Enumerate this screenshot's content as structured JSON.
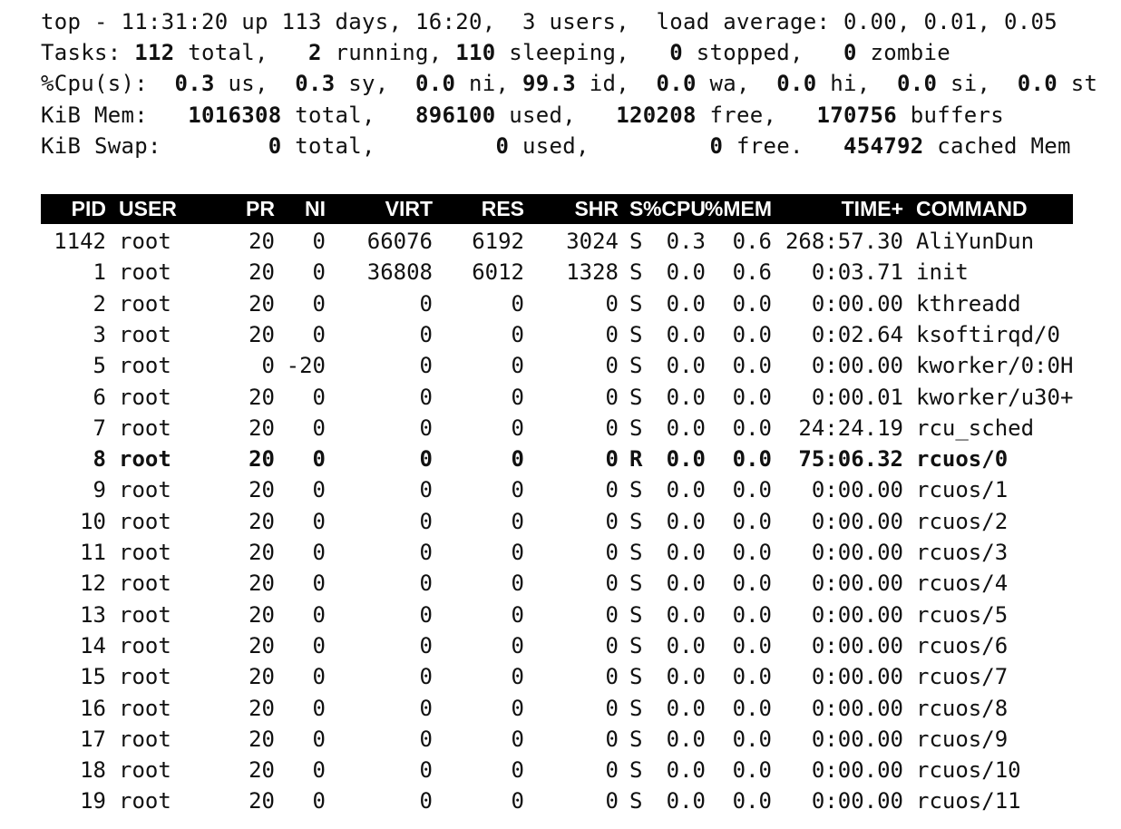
{
  "summary": {
    "line1": {
      "prefix": "top - ",
      "time": "11:31:20",
      "up_text": " up 113 days, 16:20,  3 users,  load average: ",
      "load": "0.00, 0.01, 0.05"
    },
    "tasks": {
      "label": "Tasks: ",
      "total": "112",
      "total_label": " total,   ",
      "running": "2",
      "running_label": " running, ",
      "sleeping": "110",
      "sleeping_label": " sleeping,   ",
      "stopped": "0",
      "stopped_label": " stopped,   ",
      "zombie": "0",
      "zombie_label": " zombie"
    },
    "cpu": {
      "label": "%Cpu(s):  ",
      "us": "0.3",
      "us_label": " us,  ",
      "sy": "0.3",
      "sy_label": " sy,  ",
      "ni": "0.0",
      "ni_label": " ni, ",
      "id": "99.3",
      "id_label": " id,  ",
      "wa": "0.0",
      "wa_label": " wa,  ",
      "hi": "0.0",
      "hi_label": " hi,  ",
      "si": "0.0",
      "si_label": " si,  ",
      "st": "0.0",
      "st_label": " st"
    },
    "mem": {
      "label": "KiB Mem:   ",
      "total": "1016308",
      "total_label": " total,   ",
      "used": "896100",
      "used_label": " used,   ",
      "free": "120208",
      "free_label": " free,   ",
      "buffers": "170756",
      "buffers_label": " buffers"
    },
    "swap": {
      "label": "KiB Swap:        ",
      "total": "0",
      "total_label": " total,         ",
      "used": "0",
      "used_label": " used,         ",
      "free": "0",
      "free_label": " free.   ",
      "cached": "454792",
      "cached_label": " cached Mem"
    }
  },
  "table": {
    "columns": [
      "PID",
      "USER",
      "PR",
      "NI",
      "VIRT",
      "RES",
      "SHR",
      "S",
      "%CPU",
      "%MEM",
      "TIME+",
      "COMMAND"
    ],
    "rows": [
      [
        "1142",
        "root",
        "20",
        "0",
        "66076",
        "6192",
        "3024",
        "S",
        "0.3",
        "0.6",
        "268:57.30",
        "AliYunDun"
      ],
      [
        "1",
        "root",
        "20",
        "0",
        "36808",
        "6012",
        "1328",
        "S",
        "0.0",
        "0.6",
        "0:03.71",
        "init"
      ],
      [
        "2",
        "root",
        "20",
        "0",
        "0",
        "0",
        "0",
        "S",
        "0.0",
        "0.0",
        "0:00.00",
        "kthreadd"
      ],
      [
        "3",
        "root",
        "20",
        "0",
        "0",
        "0",
        "0",
        "S",
        "0.0",
        "0.0",
        "0:02.64",
        "ksoftirqd/0"
      ],
      [
        "5",
        "root",
        "0",
        "-20",
        "0",
        "0",
        "0",
        "S",
        "0.0",
        "0.0",
        "0:00.00",
        "kworker/0:0H"
      ],
      [
        "6",
        "root",
        "20",
        "0",
        "0",
        "0",
        "0",
        "S",
        "0.0",
        "0.0",
        "0:00.01",
        "kworker/u30+"
      ],
      [
        "7",
        "root",
        "20",
        "0",
        "0",
        "0",
        "0",
        "S",
        "0.0",
        "0.0",
        "24:24.19",
        "rcu_sched"
      ],
      [
        "8",
        "root",
        "20",
        "0",
        "0",
        "0",
        "0",
        "R",
        "0.0",
        "0.0",
        "75:06.32",
        "rcuos/0"
      ],
      [
        "9",
        "root",
        "20",
        "0",
        "0",
        "0",
        "0",
        "S",
        "0.0",
        "0.0",
        "0:00.00",
        "rcuos/1"
      ],
      [
        "10",
        "root",
        "20",
        "0",
        "0",
        "0",
        "0",
        "S",
        "0.0",
        "0.0",
        "0:00.00",
        "rcuos/2"
      ],
      [
        "11",
        "root",
        "20",
        "0",
        "0",
        "0",
        "0",
        "S",
        "0.0",
        "0.0",
        "0:00.00",
        "rcuos/3"
      ],
      [
        "12",
        "root",
        "20",
        "0",
        "0",
        "0",
        "0",
        "S",
        "0.0",
        "0.0",
        "0:00.00",
        "rcuos/4"
      ],
      [
        "13",
        "root",
        "20",
        "0",
        "0",
        "0",
        "0",
        "S",
        "0.0",
        "0.0",
        "0:00.00",
        "rcuos/5"
      ],
      [
        "14",
        "root",
        "20",
        "0",
        "0",
        "0",
        "0",
        "S",
        "0.0",
        "0.0",
        "0:00.00",
        "rcuos/6"
      ],
      [
        "15",
        "root",
        "20",
        "0",
        "0",
        "0",
        "0",
        "S",
        "0.0",
        "0.0",
        "0:00.00",
        "rcuos/7"
      ],
      [
        "16",
        "root",
        "20",
        "0",
        "0",
        "0",
        "0",
        "S",
        "0.0",
        "0.0",
        "0:00.00",
        "rcuos/8"
      ],
      [
        "17",
        "root",
        "20",
        "0",
        "0",
        "0",
        "0",
        "S",
        "0.0",
        "0.0",
        "0:00.00",
        "rcuos/9"
      ],
      [
        "18",
        "root",
        "20",
        "0",
        "0",
        "0",
        "0",
        "S",
        "0.0",
        "0.0",
        "0:00.00",
        "rcuos/10"
      ],
      [
        "19",
        "root",
        "20",
        "0",
        "0",
        "0",
        "0",
        "S",
        "0.0",
        "0.0",
        "0:00.00",
        "rcuos/11"
      ]
    ],
    "running_state": "R"
  },
  "colors": {
    "background": "#ffffff",
    "text": "#111111",
    "header_bar": "#000000",
    "header_text": "#ffffff"
  }
}
